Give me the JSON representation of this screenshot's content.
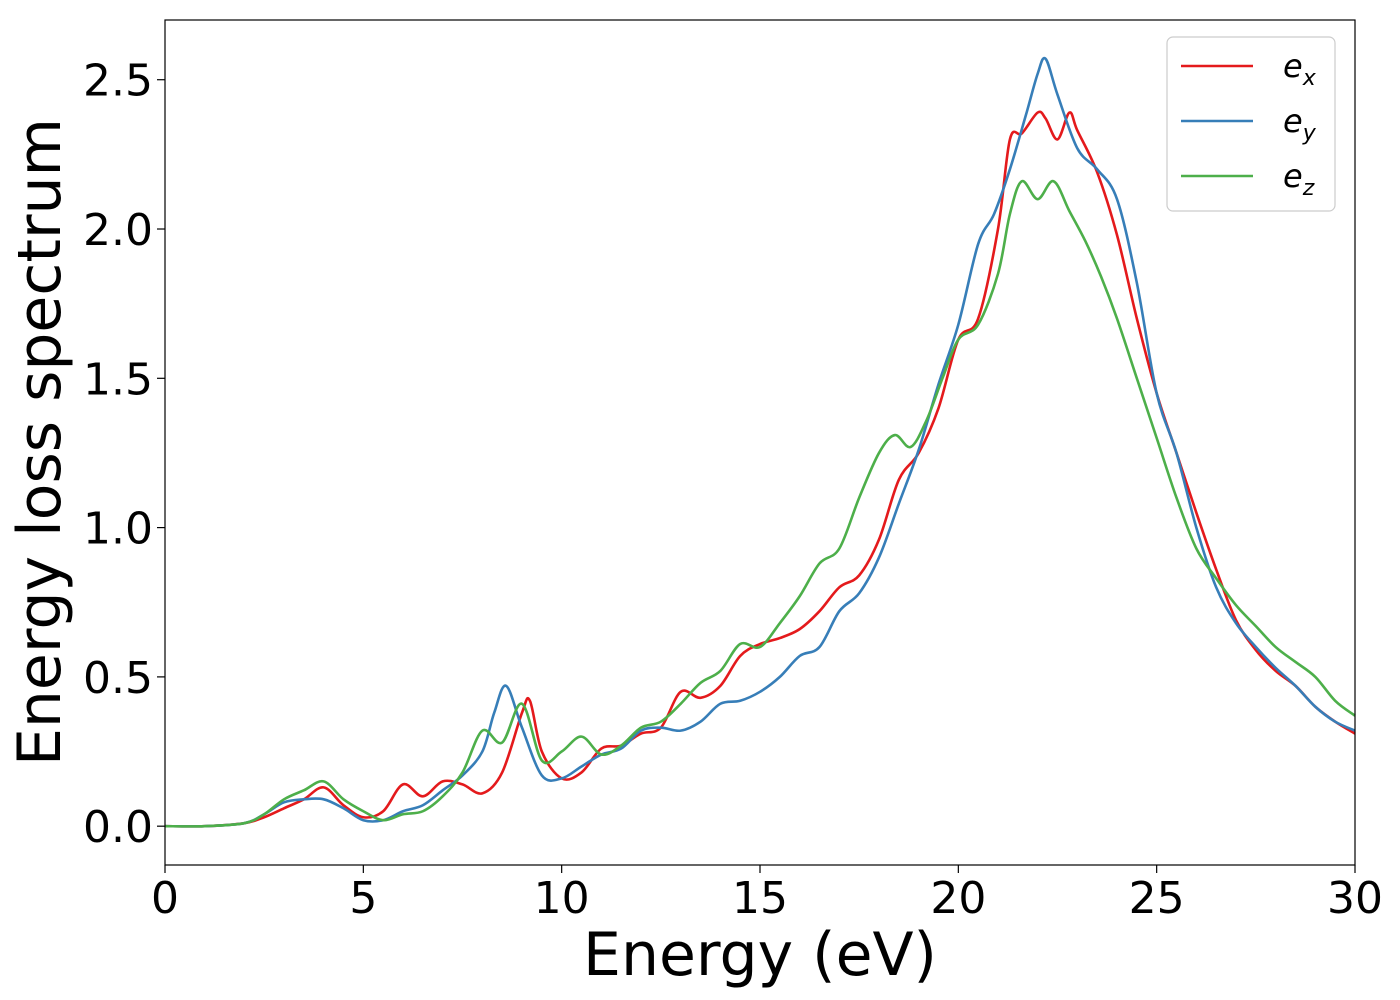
{
  "chart_data": {
    "type": "line",
    "title": "",
    "xlabel": "Energy (eV)",
    "ylabel": "Energy loss spectrum",
    "xlim": [
      0,
      30
    ],
    "ylim": [
      -0.13,
      2.7
    ],
    "xticks": [
      0,
      5,
      10,
      15,
      20,
      25,
      30
    ],
    "xtick_labels": [
      "0",
      "5",
      "10",
      "15",
      "20",
      "25",
      "30"
    ],
    "yticks": [
      0.0,
      0.5,
      1.0,
      1.5,
      2.0,
      2.5
    ],
    "ytick_labels": [
      "0.0",
      "0.5",
      "1.0",
      "1.5",
      "2.0",
      "2.5"
    ],
    "grid": false,
    "legend_position": "top-right",
    "series": [
      {
        "name": "e",
        "subscript": "x",
        "color": "#e41a1c",
        "x": [
          0,
          1,
          2,
          2.5,
          3,
          3.5,
          4,
          4.5,
          5,
          5.5,
          6,
          6.5,
          7,
          7.5,
          8,
          8.5,
          9,
          9.2,
          9.5,
          10,
          10.5,
          11,
          11.5,
          12,
          12.5,
          13,
          13.5,
          14,
          14.5,
          15,
          15.5,
          16,
          16.5,
          17,
          17.5,
          18,
          18.5,
          19,
          19.5,
          20,
          20.5,
          21,
          21.3,
          21.6,
          22,
          22.2,
          22.5,
          22.8,
          23,
          23.5,
          24,
          24.5,
          25,
          25.5,
          26,
          26.5,
          27,
          27.5,
          28,
          28.5,
          29,
          29.5,
          30
        ],
        "y": [
          0.0,
          0.0,
          0.01,
          0.03,
          0.06,
          0.09,
          0.13,
          0.07,
          0.03,
          0.05,
          0.14,
          0.1,
          0.15,
          0.14,
          0.11,
          0.18,
          0.38,
          0.42,
          0.25,
          0.16,
          0.18,
          0.26,
          0.27,
          0.31,
          0.33,
          0.45,
          0.43,
          0.47,
          0.57,
          0.61,
          0.63,
          0.66,
          0.72,
          0.8,
          0.84,
          0.96,
          1.16,
          1.25,
          1.4,
          1.63,
          1.7,
          2.0,
          2.3,
          2.32,
          2.39,
          2.37,
          2.3,
          2.39,
          2.33,
          2.19,
          1.98,
          1.7,
          1.45,
          1.25,
          1.05,
          0.86,
          0.69,
          0.59,
          0.52,
          0.47,
          0.4,
          0.35,
          0.31
        ]
      },
      {
        "name": "e",
        "subscript": "y",
        "color": "#377eb8",
        "x": [
          0,
          1,
          2,
          2.5,
          3,
          3.5,
          4,
          4.5,
          5,
          5.5,
          6,
          6.5,
          7,
          7.5,
          8,
          8.3,
          8.6,
          9,
          9.5,
          10,
          10.5,
          11,
          11.5,
          12,
          12.5,
          13,
          13.5,
          14,
          14.5,
          15,
          15.5,
          16,
          16.5,
          17,
          17.5,
          18,
          18.5,
          19,
          19.5,
          20,
          20.5,
          20.9,
          21.3,
          21.7,
          22,
          22.2,
          22.5,
          23,
          23.5,
          24,
          24.5,
          25,
          25.5,
          26,
          26.5,
          27,
          27.5,
          28,
          28.5,
          29,
          29.5,
          30
        ],
        "y": [
          0.0,
          0.0,
          0.01,
          0.04,
          0.08,
          0.09,
          0.09,
          0.06,
          0.02,
          0.02,
          0.05,
          0.07,
          0.12,
          0.17,
          0.25,
          0.38,
          0.47,
          0.33,
          0.17,
          0.16,
          0.2,
          0.24,
          0.26,
          0.32,
          0.33,
          0.32,
          0.35,
          0.41,
          0.42,
          0.45,
          0.5,
          0.57,
          0.6,
          0.72,
          0.78,
          0.9,
          1.08,
          1.26,
          1.48,
          1.68,
          1.95,
          2.05,
          2.2,
          2.38,
          2.52,
          2.57,
          2.45,
          2.27,
          2.2,
          2.1,
          1.82,
          1.45,
          1.25,
          1.0,
          0.8,
          0.68,
          0.6,
          0.53,
          0.47,
          0.4,
          0.35,
          0.32
        ]
      },
      {
        "name": "e",
        "subscript": "z",
        "color": "#4daf4a",
        "x": [
          0,
          1,
          2,
          2.5,
          3,
          3.5,
          4,
          4.5,
          5,
          5.5,
          6,
          6.5,
          7,
          7.5,
          8,
          8.5,
          9,
          9.5,
          10,
          10.5,
          11,
          11.5,
          12,
          12.5,
          13,
          13.5,
          14,
          14.5,
          15,
          15.5,
          16,
          16.5,
          17,
          17.5,
          18,
          18.4,
          18.8,
          19.2,
          19.6,
          20,
          20.5,
          21,
          21.3,
          21.6,
          22,
          22.4,
          22.8,
          23.2,
          23.6,
          24,
          24.5,
          25,
          25.5,
          26,
          26.5,
          27,
          27.5,
          28,
          28.5,
          29,
          29.5,
          30
        ],
        "y": [
          0.0,
          0.0,
          0.01,
          0.04,
          0.09,
          0.12,
          0.15,
          0.09,
          0.05,
          0.02,
          0.04,
          0.05,
          0.1,
          0.18,
          0.32,
          0.28,
          0.41,
          0.22,
          0.25,
          0.3,
          0.24,
          0.27,
          0.33,
          0.35,
          0.41,
          0.48,
          0.52,
          0.61,
          0.6,
          0.68,
          0.77,
          0.88,
          0.93,
          1.1,
          1.25,
          1.31,
          1.27,
          1.36,
          1.5,
          1.63,
          1.68,
          1.85,
          2.05,
          2.16,
          2.1,
          2.16,
          2.06,
          1.96,
          1.84,
          1.7,
          1.5,
          1.3,
          1.1,
          0.93,
          0.83,
          0.74,
          0.67,
          0.6,
          0.55,
          0.5,
          0.42,
          0.37
        ]
      }
    ]
  }
}
